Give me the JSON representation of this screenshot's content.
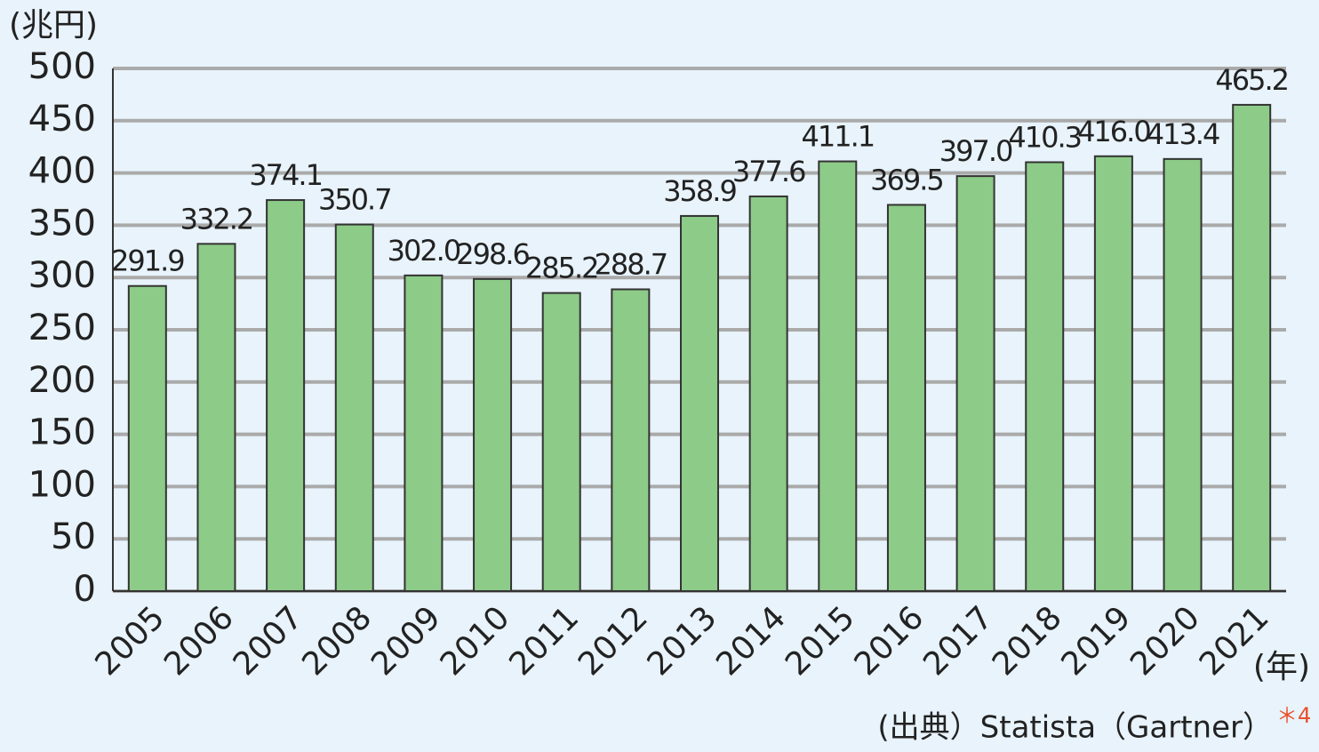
{
  "chart_data": {
    "type": "bar",
    "y_label": "(兆円)",
    "x_label": "(年)",
    "source": "(出典）Statista（Gartner）",
    "source_note": "＊4",
    "categories": [
      "2005",
      "2006",
      "2007",
      "2008",
      "2009",
      "2010",
      "2011",
      "2012",
      "2013",
      "2014",
      "2015",
      "2016",
      "2017",
      "2018",
      "2019",
      "2020",
      "2021"
    ],
    "values": [
      291.9,
      332.2,
      374.1,
      350.7,
      302.0,
      298.6,
      285.2,
      288.7,
      358.9,
      377.6,
      411.1,
      369.5,
      397.0,
      410.3,
      416.0,
      413.4,
      465.2
    ],
    "value_labels": [
      "291.9",
      "332.2",
      "374.1",
      "350.7",
      "302.0",
      "298.6",
      "285.2",
      "288.7",
      "358.9",
      "377.6",
      "411.1",
      "369.5",
      "397.0",
      "410.3",
      "416.0",
      "413.4",
      "465.2"
    ],
    "color": "#8dcb88",
    "ylim": [
      0,
      500
    ],
    "yticks": [
      0,
      50,
      100,
      150,
      200,
      250,
      300,
      350,
      400,
      450,
      500
    ],
    "grid": true
  }
}
